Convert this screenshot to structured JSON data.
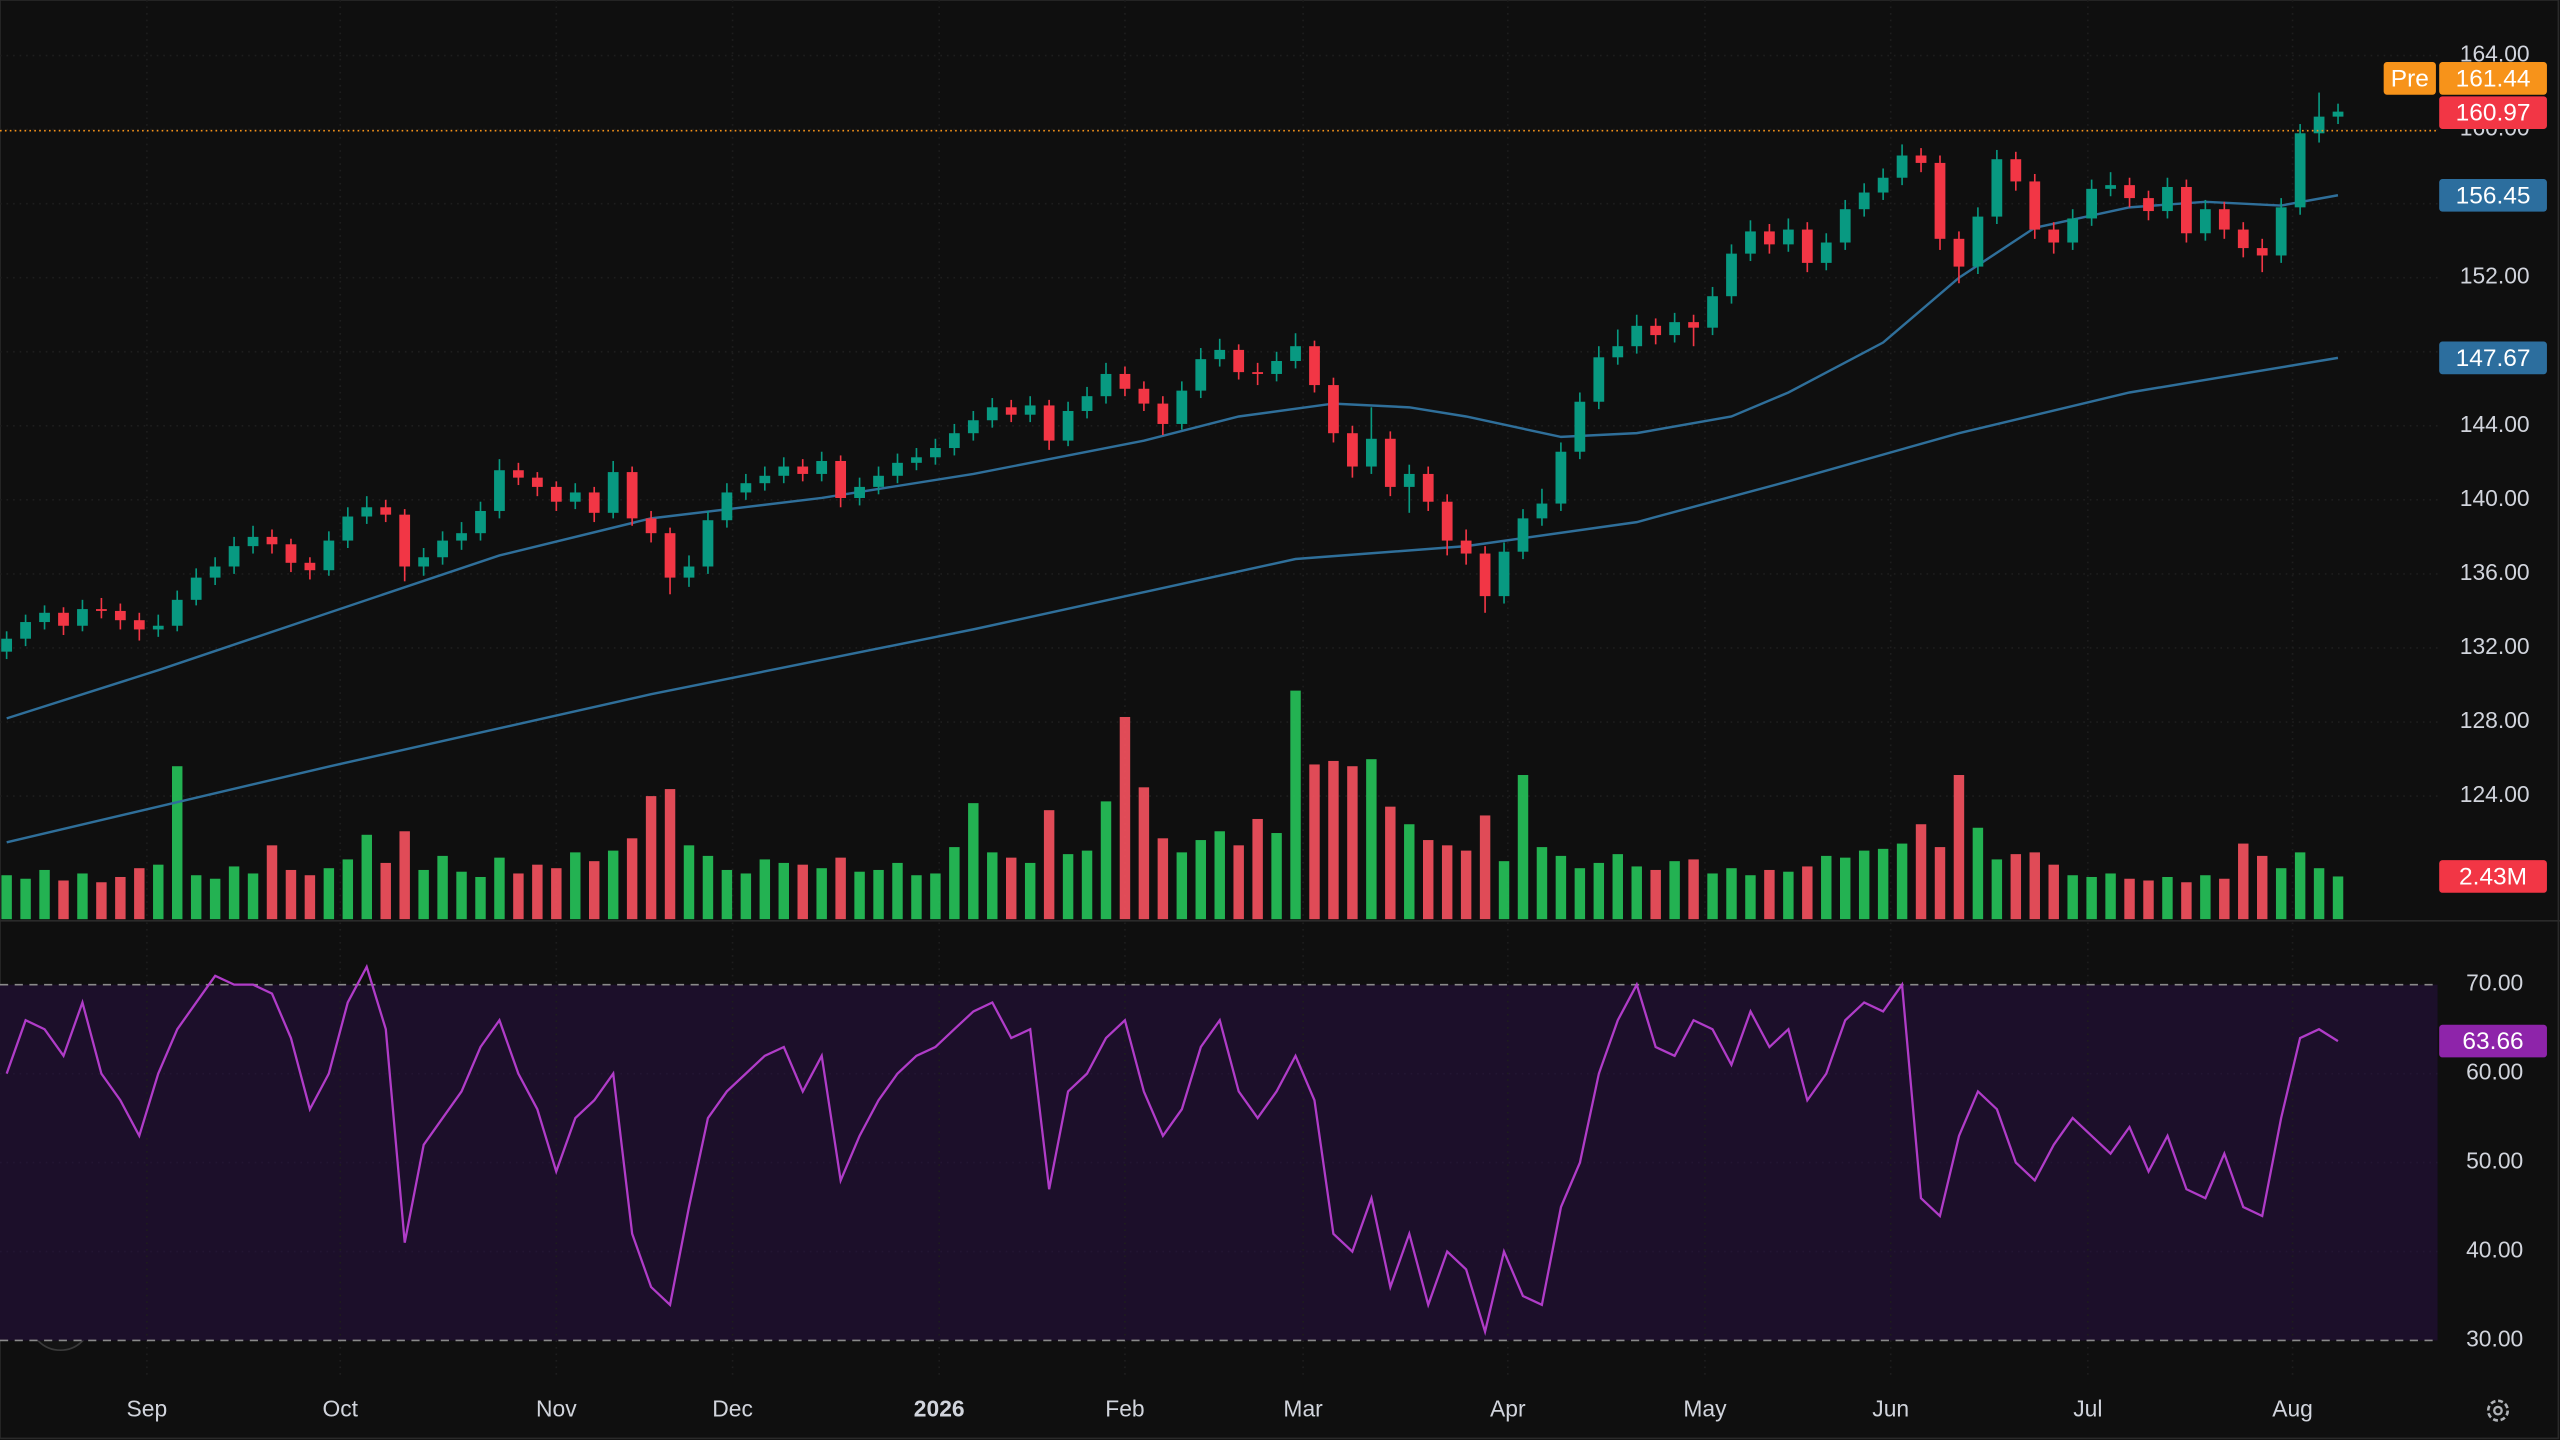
{
  "chart_data": {
    "type": "candlestick",
    "up_color": "#089981",
    "down_color": "#f23645",
    "volume_up_color": "#26c45a",
    "volume_down_color": "#f7525f",
    "xlim": [
      -0.35,
      128.25
    ],
    "xticks": [
      {
        "value": 7.4,
        "label": "Sep"
      },
      {
        "value": 17.6,
        "label": "Oct"
      },
      {
        "value": 29.0,
        "label": "Nov"
      },
      {
        "value": 38.3,
        "label": "Dec"
      },
      {
        "value": 49.2,
        "label": "2026"
      },
      {
        "value": 59.0,
        "label": "Feb"
      },
      {
        "value": 68.4,
        "label": "Mar"
      },
      {
        "value": 79.2,
        "label": "Apr"
      },
      {
        "value": 89.6,
        "label": "May"
      },
      {
        "value": 99.4,
        "label": "Jun"
      },
      {
        "value": 109.8,
        "label": "Jul"
      },
      {
        "value": 120.6,
        "label": "Aug"
      }
    ],
    "ylim": [
      117.35,
      167
    ],
    "yticks": [
      {
        "value": 124,
        "label": "124.00"
      },
      {
        "value": 128,
        "label": "128.00"
      },
      {
        "value": 132,
        "label": "132.00"
      },
      {
        "value": 136,
        "label": "136.00"
      },
      {
        "value": 140,
        "label": "140.00"
      },
      {
        "value": 144,
        "label": "144.00"
      },
      {
        "value": 148,
        "label": "148.00"
      },
      {
        "value": 152,
        "label": "152.00"
      },
      {
        "value": 156,
        "label": "156.00"
      },
      {
        "value": 160,
        "label": "160.00"
      },
      {
        "value": 164,
        "label": "164.00"
      }
    ],
    "grid": true,
    "ohlc": [
      [
        131.8,
        132.9,
        131.4,
        132.5
      ],
      [
        132.5,
        133.8,
        132.1,
        133.4
      ],
      [
        133.4,
        134.3,
        133.0,
        133.9
      ],
      [
        133.9,
        134.2,
        132.7,
        133.2
      ],
      [
        133.2,
        134.6,
        132.9,
        134.1
      ],
      [
        134.1,
        134.7,
        133.6,
        134.0
      ],
      [
        134.0,
        134.4,
        133.0,
        133.5
      ],
      [
        133.5,
        133.9,
        132.4,
        133.0
      ],
      [
        133.0,
        133.8,
        132.6,
        133.2
      ],
      [
        133.2,
        135.1,
        132.9,
        134.6
      ],
      [
        134.6,
        136.3,
        134.3,
        135.8
      ],
      [
        135.8,
        136.9,
        135.4,
        136.4
      ],
      [
        136.4,
        138.0,
        136.0,
        137.5
      ],
      [
        137.5,
        138.6,
        137.1,
        138.0
      ],
      [
        138.0,
        138.4,
        137.1,
        137.6
      ],
      [
        137.6,
        137.9,
        136.1,
        136.6
      ],
      [
        136.6,
        136.9,
        135.7,
        136.2
      ],
      [
        136.2,
        138.3,
        135.9,
        137.8
      ],
      [
        137.8,
        139.6,
        137.4,
        139.1
      ],
      [
        139.1,
        140.2,
        138.7,
        139.6
      ],
      [
        139.6,
        140.0,
        138.8,
        139.2
      ],
      [
        139.2,
        139.5,
        135.6,
        136.4
      ],
      [
        136.4,
        137.4,
        135.9,
        136.9
      ],
      [
        136.9,
        138.3,
        136.5,
        137.8
      ],
      [
        137.8,
        138.8,
        137.3,
        138.2
      ],
      [
        138.2,
        139.9,
        137.8,
        139.4
      ],
      [
        139.4,
        142.2,
        139.0,
        141.6
      ],
      [
        141.6,
        142.0,
        140.8,
        141.2
      ],
      [
        141.2,
        141.5,
        140.2,
        140.7
      ],
      [
        140.7,
        141.0,
        139.4,
        139.9
      ],
      [
        139.9,
        140.9,
        139.5,
        140.4
      ],
      [
        140.4,
        140.7,
        138.8,
        139.3
      ],
      [
        139.3,
        142.1,
        139.0,
        141.5
      ],
      [
        141.5,
        141.8,
        138.6,
        139.0
      ],
      [
        139.0,
        139.4,
        137.7,
        138.2
      ],
      [
        138.2,
        138.5,
        134.9,
        135.8
      ],
      [
        135.8,
        137.0,
        135.3,
        136.4
      ],
      [
        136.4,
        139.4,
        136.0,
        138.9
      ],
      [
        138.9,
        140.9,
        138.5,
        140.4
      ],
      [
        140.4,
        141.4,
        140.0,
        140.9
      ],
      [
        140.9,
        141.8,
        140.5,
        141.3
      ],
      [
        141.3,
        142.3,
        140.9,
        141.8
      ],
      [
        141.8,
        142.2,
        141.0,
        141.4
      ],
      [
        141.4,
        142.6,
        141.0,
        142.1
      ],
      [
        142.1,
        142.4,
        139.6,
        140.1
      ],
      [
        140.1,
        141.2,
        139.7,
        140.7
      ],
      [
        140.7,
        141.8,
        140.3,
        141.3
      ],
      [
        141.3,
        142.5,
        140.9,
        142.0
      ],
      [
        142.0,
        142.8,
        141.6,
        142.3
      ],
      [
        142.3,
        143.3,
        141.9,
        142.8
      ],
      [
        142.8,
        144.1,
        142.4,
        143.6
      ],
      [
        143.6,
        144.8,
        143.2,
        144.3
      ],
      [
        144.3,
        145.5,
        143.9,
        145.0
      ],
      [
        145.0,
        145.4,
        144.2,
        144.6
      ],
      [
        144.6,
        145.6,
        144.2,
        145.1
      ],
      [
        145.1,
        145.4,
        142.7,
        143.2
      ],
      [
        143.2,
        145.3,
        142.9,
        144.8
      ],
      [
        144.8,
        146.1,
        144.4,
        145.6
      ],
      [
        145.6,
        147.4,
        145.2,
        146.8
      ],
      [
        146.8,
        147.2,
        145.6,
        146.0
      ],
      [
        146.0,
        146.4,
        144.8,
        145.2
      ],
      [
        145.2,
        145.6,
        143.5,
        144.1
      ],
      [
        144.1,
        146.4,
        143.8,
        145.9
      ],
      [
        145.9,
        148.2,
        145.5,
        147.6
      ],
      [
        147.6,
        148.7,
        147.2,
        148.1
      ],
      [
        148.1,
        148.4,
        146.5,
        146.9
      ],
      [
        146.9,
        147.4,
        146.2,
        146.8
      ],
      [
        146.8,
        148.0,
        146.4,
        147.5
      ],
      [
        147.5,
        149.0,
        147.1,
        148.3
      ],
      [
        148.3,
        148.6,
        145.8,
        146.2
      ],
      [
        146.2,
        146.6,
        143.1,
        143.6
      ],
      [
        143.6,
        144.0,
        141.2,
        141.8
      ],
      [
        141.8,
        145.0,
        141.4,
        143.3
      ],
      [
        143.3,
        143.7,
        140.2,
        140.7
      ],
      [
        140.7,
        141.9,
        139.3,
        141.4
      ],
      [
        141.4,
        141.8,
        139.4,
        139.9
      ],
      [
        139.9,
        140.3,
        137.0,
        137.8
      ],
      [
        137.8,
        138.4,
        136.5,
        137.1
      ],
      [
        137.1,
        137.5,
        133.9,
        134.8
      ],
      [
        134.8,
        137.7,
        134.4,
        137.2
      ],
      [
        137.2,
        139.5,
        136.8,
        139.0
      ],
      [
        139.0,
        140.6,
        138.6,
        139.8
      ],
      [
        139.8,
        143.1,
        139.4,
        142.6
      ],
      [
        142.6,
        145.8,
        142.2,
        145.3
      ],
      [
        145.3,
        148.3,
        144.9,
        147.7
      ],
      [
        147.7,
        149.2,
        147.3,
        148.3
      ],
      [
        148.3,
        150.0,
        147.9,
        149.4
      ],
      [
        149.4,
        149.8,
        148.4,
        148.9
      ],
      [
        148.9,
        150.1,
        148.5,
        149.6
      ],
      [
        149.6,
        150.0,
        148.3,
        149.3
      ],
      [
        149.3,
        151.5,
        148.9,
        151.0
      ],
      [
        151.0,
        153.8,
        150.6,
        153.3
      ],
      [
        153.3,
        155.1,
        152.9,
        154.5
      ],
      [
        154.5,
        154.9,
        153.3,
        153.8
      ],
      [
        153.8,
        155.2,
        153.4,
        154.6
      ],
      [
        154.6,
        155.0,
        152.3,
        152.8
      ],
      [
        152.8,
        154.4,
        152.4,
        153.9
      ],
      [
        153.9,
        156.2,
        153.5,
        155.7
      ],
      [
        155.7,
        157.1,
        155.3,
        156.6
      ],
      [
        156.6,
        157.9,
        156.2,
        157.4
      ],
      [
        157.4,
        159.2,
        157.0,
        158.6
      ],
      [
        158.6,
        159.0,
        157.7,
        158.2
      ],
      [
        158.2,
        158.6,
        153.5,
        154.1
      ],
      [
        154.1,
        154.5,
        151.7,
        152.6
      ],
      [
        152.6,
        155.8,
        152.2,
        155.3
      ],
      [
        155.3,
        158.9,
        154.9,
        158.4
      ],
      [
        158.4,
        158.8,
        156.7,
        157.2
      ],
      [
        157.2,
        157.6,
        154.1,
        154.6
      ],
      [
        154.6,
        155.0,
        153.3,
        153.9
      ],
      [
        153.9,
        155.7,
        153.5,
        155.2
      ],
      [
        155.2,
        157.3,
        154.8,
        156.8
      ],
      [
        156.8,
        157.7,
        156.4,
        157.0
      ],
      [
        157.0,
        157.4,
        155.8,
        156.3
      ],
      [
        156.3,
        156.7,
        155.1,
        155.6
      ],
      [
        155.6,
        157.4,
        155.2,
        156.9
      ],
      [
        156.9,
        157.3,
        153.9,
        154.4
      ],
      [
        154.4,
        156.2,
        154.0,
        155.7
      ],
      [
        155.7,
        156.1,
        154.1,
        154.6
      ],
      [
        154.6,
        155.0,
        153.1,
        153.6
      ],
      [
        153.6,
        154.1,
        152.3,
        153.2
      ],
      [
        153.2,
        156.3,
        152.8,
        155.8
      ],
      [
        155.8,
        160.3,
        155.4,
        159.8
      ],
      [
        159.8,
        162.0,
        159.3,
        160.7
      ],
      [
        160.7,
        161.4,
        160.3,
        160.97
      ]
    ],
    "volume": [
      2.5,
      2.3,
      2.8,
      2.2,
      2.6,
      2.1,
      2.4,
      2.9,
      3.1,
      8.7,
      2.5,
      2.3,
      3.0,
      2.6,
      4.2,
      2.8,
      2.5,
      2.9,
      3.4,
      4.8,
      3.2,
      5.0,
      2.8,
      3.6,
      2.7,
      2.4,
      3.5,
      2.6,
      3.1,
      2.9,
      3.8,
      3.3,
      3.9,
      4.6,
      7.0,
      7.4,
      4.2,
      3.6,
      2.8,
      2.6,
      3.4,
      3.2,
      3.1,
      2.9,
      3.5,
      2.7,
      2.8,
      3.2,
      2.5,
      2.6,
      4.1,
      6.6,
      3.8,
      3.5,
      3.2,
      6.2,
      3.7,
      3.9,
      6.7,
      11.5,
      7.5,
      4.6,
      3.8,
      4.5,
      5.0,
      4.2,
      5.7,
      4.9,
      13.0,
      8.8,
      9.0,
      8.7,
      9.1,
      6.4,
      5.4,
      4.5,
      4.2,
      3.9,
      5.9,
      3.3,
      8.2,
      4.1,
      3.6,
      2.9,
      3.2,
      3.7,
      3.0,
      2.8,
      3.3,
      3.4,
      2.6,
      2.9,
      2.5,
      2.8,
      2.7,
      3.0,
      3.6,
      3.5,
      3.9,
      4.0,
      4.3,
      5.4,
      4.1,
      8.2,
      5.2,
      3.4,
      3.7,
      3.8,
      3.1,
      2.5,
      2.4,
      2.6,
      2.3,
      2.2,
      2.4,
      2.1,
      2.5,
      2.3,
      4.3,
      3.6,
      2.9,
      3.8,
      2.9,
      2.43
    ],
    "volume_label": "2.43M",
    "moving_averages": [
      {
        "color": "#2f6f9a",
        "x": [
          0,
          8,
          17,
          26,
          34,
          43,
          51,
          60,
          65,
          70,
          74,
          77,
          82,
          86,
          91,
          94,
          99,
          103,
          107,
          112,
          116,
          120,
          123
        ],
        "values": [
          128.2,
          130.8,
          133.9,
          137.0,
          139.0,
          140.1,
          141.4,
          143.2,
          144.5,
          145.2,
          145.0,
          144.5,
          143.4,
          143.6,
          144.5,
          145.8,
          148.5,
          152.0,
          154.7,
          155.8,
          156.1,
          155.9,
          156.45
        ]
      },
      {
        "color": "#2f6f9a",
        "x": [
          0,
          17,
          34,
          51,
          68,
          77,
          86,
          94,
          103,
          112,
          123
        ],
        "values": [
          121.5,
          125.6,
          129.5,
          133.0,
          136.8,
          137.5,
          138.8,
          141.0,
          143.6,
          145.8,
          147.67
        ]
      }
    ],
    "premarket": {
      "label": "Pre",
      "value": 161.44,
      "color": "#f7931a"
    },
    "rsi": {
      "color": "#b03cc8",
      "fill": "#1c0f2a",
      "ylim": [
        25.6,
        77
      ],
      "yticks": [
        {
          "value": 30,
          "label": "30.00"
        },
        {
          "value": 40,
          "label": "40.00"
        },
        {
          "value": 50,
          "label": "50.00"
        },
        {
          "value": 60,
          "label": "60.00"
        },
        {
          "value": 70,
          "label": "70.00"
        }
      ],
      "values": [
        60,
        66,
        65,
        62,
        68,
        60,
        57,
        53,
        60,
        65,
        68,
        71,
        70,
        70,
        69,
        64,
        56,
        60,
        68,
        72,
        65,
        41,
        52,
        55,
        58,
        63,
        66,
        60,
        56,
        49,
        55,
        57,
        60,
        42,
        36,
        34,
        45,
        55,
        58,
        60,
        62,
        63,
        58,
        62,
        48,
        53,
        57,
        60,
        62,
        63,
        65,
        67,
        68,
        64,
        65,
        47,
        58,
        60,
        64,
        66,
        58,
        53,
        56,
        63,
        66,
        58,
        55,
        58,
        62,
        57,
        42,
        40,
        46,
        36,
        42,
        34,
        40,
        38,
        31,
        40,
        35,
        34,
        45,
        50,
        60,
        66,
        70,
        63,
        62,
        66,
        65,
        61,
        67,
        63,
        65,
        57,
        60,
        66,
        68,
        67,
        70,
        46,
        44,
        53,
        58,
        56,
        50,
        48,
        52,
        55,
        53,
        51,
        54,
        49,
        53,
        47,
        46,
        51,
        45,
        44,
        55,
        64,
        65,
        63.66
      ]
    }
  }
}
